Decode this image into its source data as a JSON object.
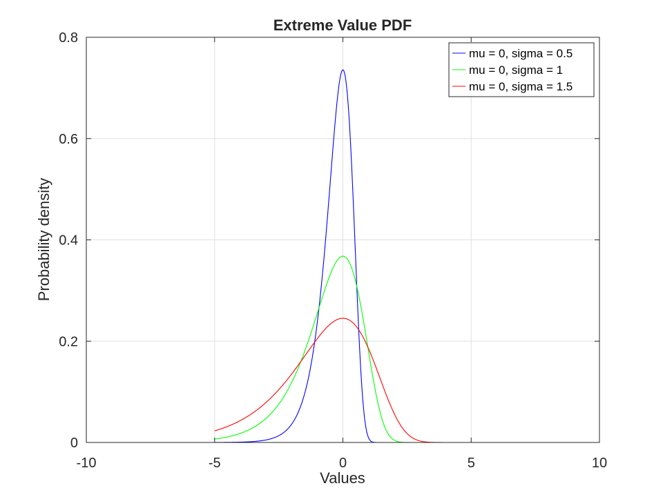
{
  "chart_data": {
    "type": "line",
    "title": "Extreme Value PDF",
    "xlabel": "Values",
    "ylabel": "Probability density",
    "xlim": [
      -10,
      10
    ],
    "ylim": [
      0,
      0.8
    ],
    "xticks": [
      -10,
      -5,
      0,
      5,
      10
    ],
    "yticks": [
      0,
      0.2,
      0.4,
      0.6,
      0.8
    ],
    "xtick_labels": [
      "-10",
      "-5",
      "0",
      "5",
      "10"
    ],
    "ytick_labels": [
      "0",
      "0.2",
      "0.4",
      "0.6",
      "0.8"
    ],
    "grid": true,
    "legend_position": "top-right",
    "x_range_plotted": [
      -5,
      10
    ],
    "series": [
      {
        "name": "mu = 0, sigma = 0.5",
        "mu": 0,
        "sigma": 0.5,
        "color": "#0000ff",
        "peak": 0.736
      },
      {
        "name": "mu = 0, sigma = 1",
        "mu": 0,
        "sigma": 1,
        "color": "#00ff00",
        "peak": 0.368
      },
      {
        "name": "mu = 0, sigma = 1.5",
        "mu": 0,
        "sigma": 1.5,
        "color": "#ff0000",
        "peak": 0.245
      }
    ]
  }
}
